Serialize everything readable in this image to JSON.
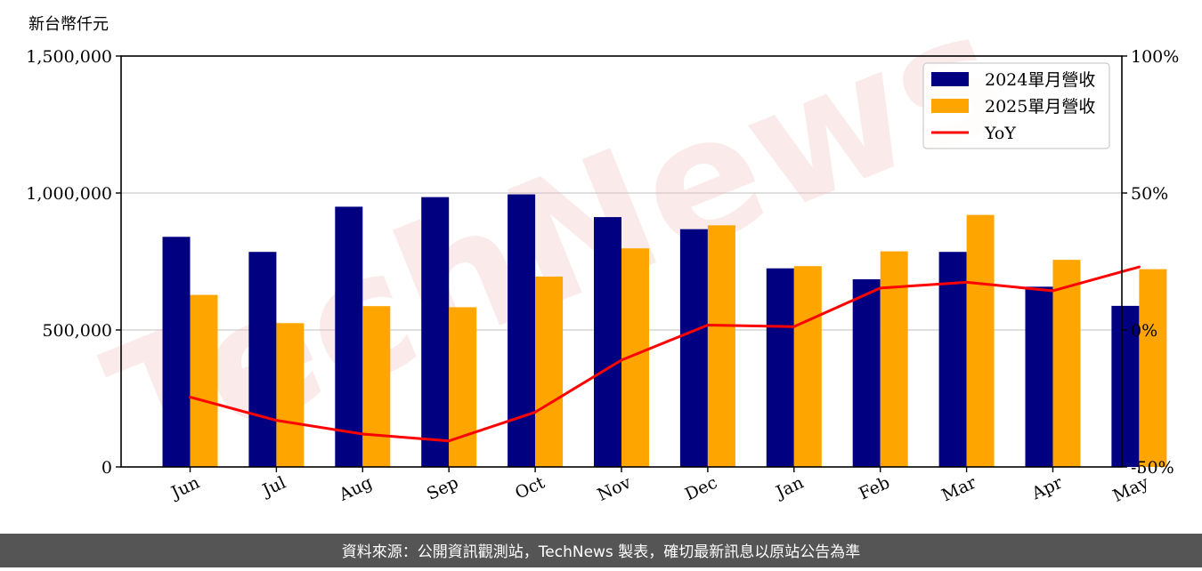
{
  "chart_data": {
    "type": "bar",
    "categories": [
      "Jun",
      "Jul",
      "Aug",
      "Sep",
      "Oct",
      "Nov",
      "Dec",
      "Jan",
      "Feb",
      "Mar",
      "Apr",
      "May"
    ],
    "series": [
      {
        "name": "2024單月營收",
        "kind": "bar",
        "axis": "left",
        "color": "#000080",
        "values": [
          840000,
          785000,
          950000,
          985000,
          995000,
          912000,
          868000,
          725000,
          685000,
          785000,
          658000,
          588000
        ]
      },
      {
        "name": "2025單月營收",
        "kind": "bar",
        "axis": "left",
        "color": "#FFA500",
        "values": [
          628000,
          525000,
          587000,
          583000,
          695000,
          798000,
          882000,
          733000,
          787000,
          920000,
          756000,
          722000
        ]
      },
      {
        "name": "YoY",
        "kind": "line",
        "axis": "right",
        "color": "#FF0000",
        "values": [
          -24.5,
          -33,
          -38,
          -40.5,
          -30,
          -11,
          1.8,
          1.2,
          15.3,
          17.4,
          14.3,
          23
        ]
      }
    ],
    "ylabel": "新台幣仟元",
    "ylim": [
      0,
      1500000
    ],
    "y_ticks": [
      "0",
      "500,000",
      "1,000,000",
      "1,500,000"
    ],
    "y2lim": [
      -50,
      100
    ],
    "y2_ticks": [
      "-50%",
      "0%",
      "50%",
      "100%"
    ],
    "grid": "horizontal",
    "legend": "top-right"
  },
  "watermark": "TechNews",
  "footer": "資料來源：公開資訊觀測站，TechNews 製表，確切最新訊息以原站公告為準"
}
